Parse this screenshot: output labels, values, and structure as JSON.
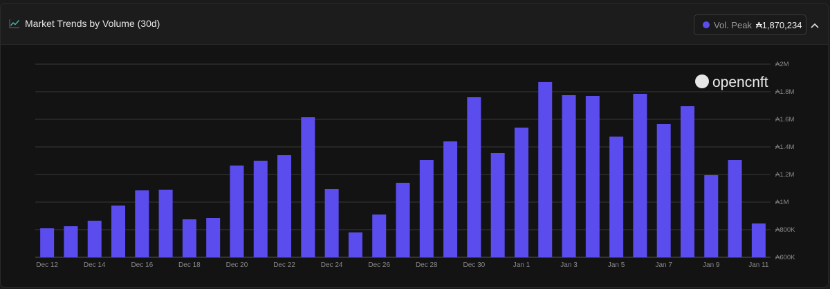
{
  "header": {
    "title": "Market Trends by Volume (30d)",
    "peak_label": "Vol. Peak",
    "peak_value": "₳1,870,234"
  },
  "watermark": "opencnft",
  "colors": {
    "bar": "#5b4ded",
    "grid": "#3a3a3a",
    "axis_text": "#8a8a8a",
    "accent_icon": "#3fb6a8"
  },
  "chart_data": {
    "type": "bar",
    "title": "Market Trends by Volume (30d)",
    "categories": [
      "Dec 12",
      "Dec 13",
      "Dec 14",
      "Dec 15",
      "Dec 16",
      "Dec 17",
      "Dec 18",
      "Dec 19",
      "Dec 20",
      "Dec 21",
      "Dec 22",
      "Dec 23",
      "Dec 24",
      "Dec 25",
      "Dec 26",
      "Dec 27",
      "Dec 28",
      "Dec 29",
      "Dec 30",
      "Dec 31",
      "Jan 1",
      "Jan 2",
      "Jan 3",
      "Jan 4",
      "Jan 5",
      "Jan 6",
      "Jan 7",
      "Jan 8",
      "Jan 9",
      "Jan 10",
      "Jan 11"
    ],
    "x_tick_labels": [
      "Dec 12",
      "Dec 14",
      "Dec 16",
      "Dec 18",
      "Dec 20",
      "Dec 22",
      "Dec 24",
      "Dec 26",
      "Dec 28",
      "Dec 30",
      "Jan 1",
      "Jan 3",
      "Jan 5",
      "Jan 7",
      "Jan 9",
      "Jan 11"
    ],
    "values": [
      810000,
      825000,
      865000,
      975000,
      1085000,
      1090000,
      875000,
      885000,
      1265000,
      1300000,
      1340000,
      1615000,
      1095000,
      780000,
      910000,
      1140000,
      1305000,
      1440000,
      1760000,
      1355000,
      1540000,
      1870234,
      1775000,
      1770000,
      1475000,
      1785000,
      1565000,
      1695000,
      1195000,
      1305000,
      845000
    ],
    "ylim": [
      600000,
      2000000
    ],
    "y_ticks": [
      600000,
      800000,
      1000000,
      1200000,
      1400000,
      1600000,
      1800000,
      2000000
    ],
    "y_tick_labels": [
      "₳600K",
      "₳800K",
      "₳1M",
      "₳1.2M",
      "₳1.4M",
      "₳1.6M",
      "₳1.8M",
      "₳2M"
    ],
    "y_axis_side": "right",
    "grid": true,
    "xlabel": "",
    "ylabel": ""
  }
}
